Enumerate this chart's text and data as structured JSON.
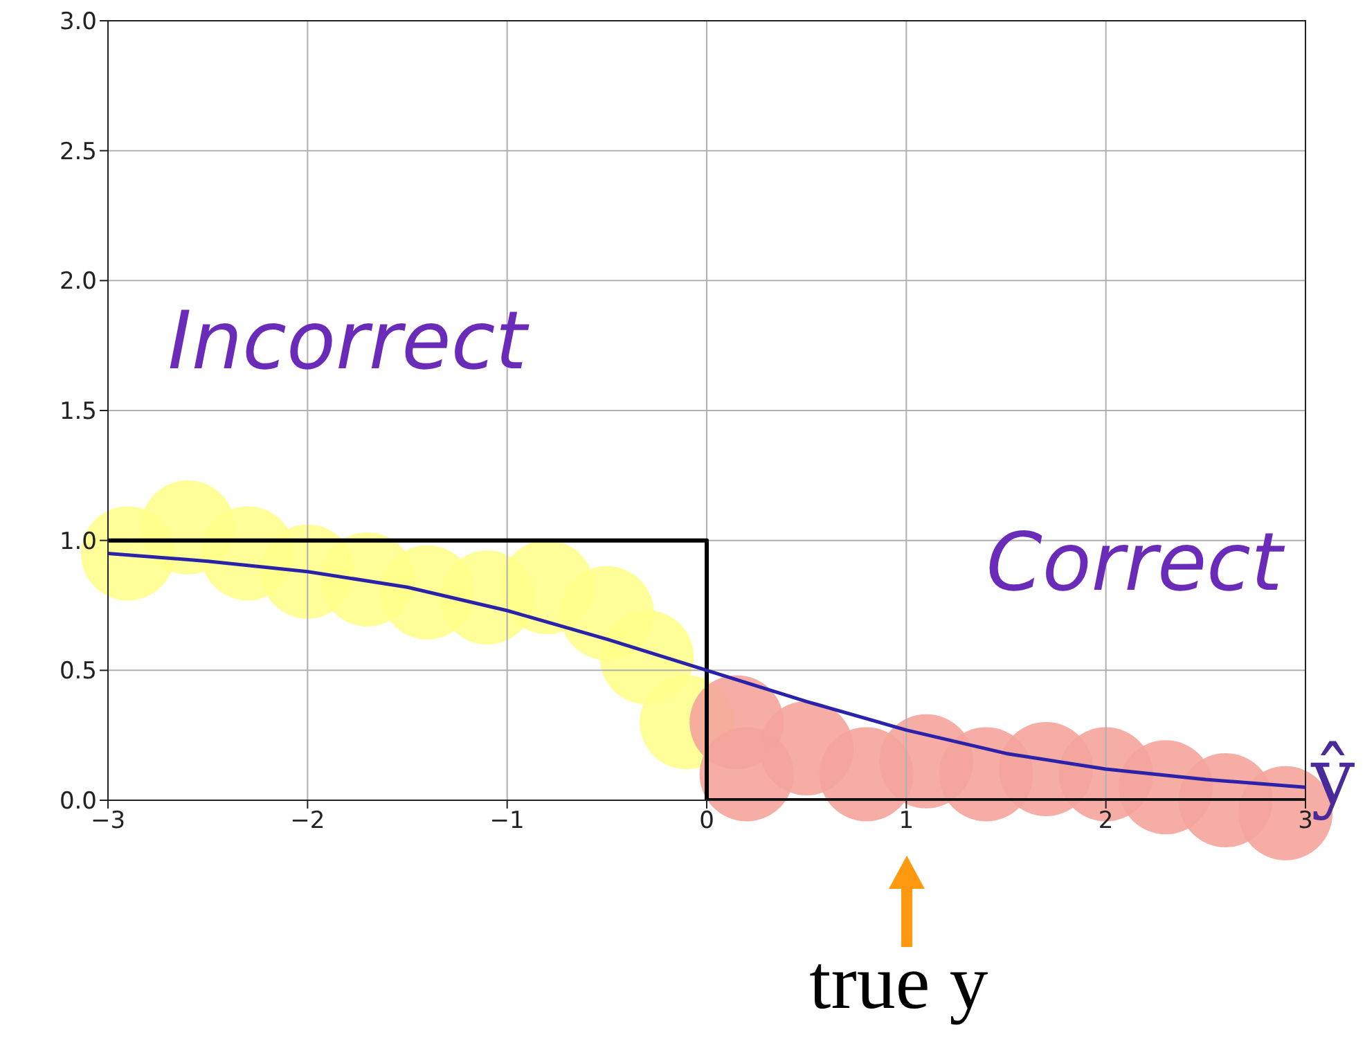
{
  "chart_data": {
    "type": "line",
    "series": [
      {
        "color": "#000000",
        "x": [
          -3,
          0,
          0,
          3
        ],
        "values": [
          1,
          1,
          0,
          0
        ]
      },
      {
        "name": "ŷ",
        "color": "#2a22a8",
        "x": [
          -3,
          -2.5,
          -2,
          -1.5,
          -1,
          -0.5,
          0,
          0.5,
          1,
          1.5,
          2,
          2.5,
          3
        ],
        "values": [
          0.95,
          0.92,
          0.88,
          0.82,
          0.73,
          0.62,
          0.5,
          0.38,
          0.27,
          0.18,
          0.12,
          0.08,
          0.05
        ]
      }
    ],
    "xlim": [
      -3,
      3
    ],
    "xticks": [
      {
        "value": -3,
        "label": "−3"
      },
      {
        "value": -2,
        "label": "−2"
      },
      {
        "value": -1,
        "label": "−1"
      },
      0,
      1,
      2,
      3
    ],
    "ylim": [
      0,
      3
    ],
    "yticks": [
      {
        "value": 0,
        "label": "0.0"
      },
      0.5,
      {
        "value": 1,
        "label": "1.0"
      },
      1.5,
      {
        "value": 2,
        "label": "2.0"
      },
      2.5,
      {
        "value": 3,
        "label": "3.0"
      }
    ],
    "grid": true,
    "marker": "none",
    "annotations": [
      "Incorrect",
      "Correct",
      "true y"
    ]
  }
}
